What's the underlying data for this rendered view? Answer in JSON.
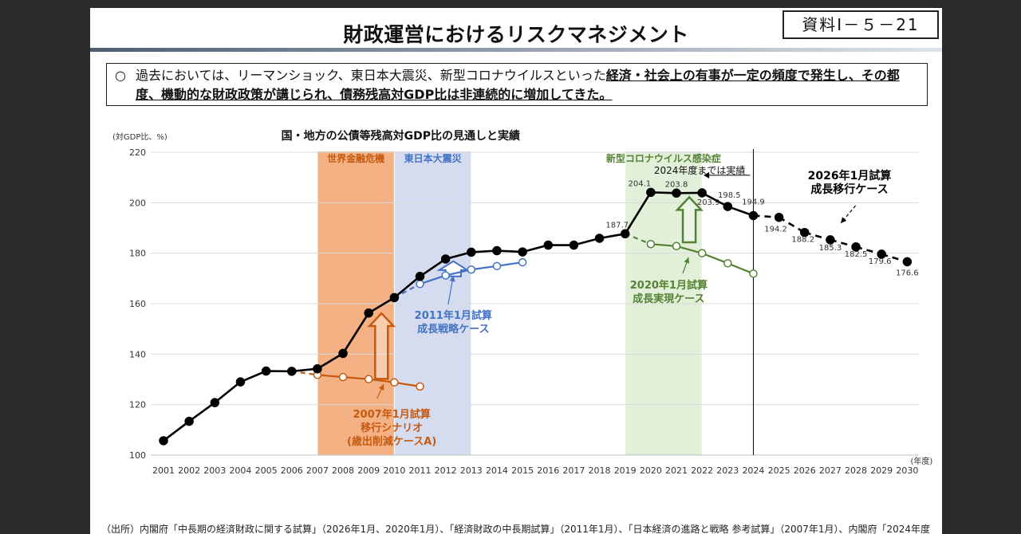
{
  "header": {
    "title": "財政運営におけるリスクマネジメント",
    "doc_number": "資料Ⅰ－５－21"
  },
  "summary": {
    "bullet": "○",
    "text_plain": "過去においては、リーマンショック、東日本大震災、新型コロナウイルスといった",
    "text_bold": "経済・社会上の有事が一定の頻度で発生し、その都度、機動的な財政政策が講じられ、債務残高対GDP比は非連続的に増加してきた。"
  },
  "footer": {
    "source": "（出所）内閣府「中長期の経済財政に関する試算」（2026年1月、2020年1月）、「経済財政の中長期試算」（2011年1月）、「日本経済の進路と戦略 参考試算」（2007年1月）、内閣府「2024年度"
  },
  "colors": {
    "actual": "#000000",
    "case2007": "#c55a11",
    "case2011": "#4472c4",
    "case2020": "#548235",
    "band_crisis": "#f4b183",
    "band_quake": "#d6dcf0",
    "band_covid": "#e2efd9"
  },
  "chart_data": {
    "type": "line",
    "title": "国・地方の公債等残高対GDP比の見通しと実績",
    "ylabel": "(対GDP比、%)",
    "xlabel": "(年度)",
    "ylim": [
      100,
      220
    ],
    "yticks": [
      100,
      120,
      140,
      160,
      180,
      200,
      220
    ],
    "xticks": [
      2001,
      2002,
      2003,
      2004,
      2005,
      2006,
      2007,
      2008,
      2009,
      2010,
      2011,
      2012,
      2013,
      2014,
      2015,
      2016,
      2017,
      2018,
      2019,
      2020,
      2021,
      2022,
      2023,
      2024,
      2025,
      2026,
      2027,
      2028,
      2029,
      2030
    ],
    "grid": true,
    "bands": [
      {
        "label": "世界金融危機",
        "from": 2007,
        "to": 2010,
        "color": "#f4b183",
        "label_color": "#c55a11"
      },
      {
        "label": "東日本大震災",
        "from": 2010,
        "to": 2013,
        "color": "#d6dcf0",
        "label_color": "#4472c4"
      },
      {
        "label": "新型コロナウイルス感染症",
        "from": 2019,
        "to": 2022,
        "color": "#e2efd9",
        "label_color": "#548235"
      }
    ],
    "divider": {
      "x": 2024,
      "label": "2024年度までは実績"
    },
    "series": [
      {
        "name": "",
        "style": "actual",
        "x": [
          2001,
          2002,
          2003,
          2004,
          2005,
          2006,
          2007,
          2008,
          2009,
          2010,
          2011,
          2012,
          2013,
          2014,
          2015,
          2016,
          2017,
          2018,
          2019,
          2020,
          2021,
          2022,
          2023,
          2024
        ],
        "y": [
          105.7,
          113.4,
          120.8,
          129.0,
          133.3,
          133.2,
          134.2,
          140.3,
          156.3,
          162.4,
          170.8,
          177.7,
          180.4,
          181.0,
          180.5,
          183.2,
          183.2,
          185.9,
          187.7,
          204.1,
          203.8,
          203.9,
          198.5,
          194.9
        ]
      },
      {
        "name": "2026年1月試算 成長移行ケース",
        "style": "dashed-black",
        "x": [
          2024,
          2025,
          2026,
          2027,
          2028,
          2029,
          2030
        ],
        "y": [
          194.9,
          194.2,
          188.2,
          185.3,
          182.5,
          179.6,
          176.6
        ]
      },
      {
        "name": "2007年1月試算 移行シナリオ (歳出削減ケースA)",
        "style": "orange",
        "x": [
          2006,
          2007,
          2008,
          2009,
          2010,
          2011
        ],
        "y": [
          133.2,
          131.8,
          130.9,
          130.1,
          128.8,
          127.2
        ]
      },
      {
        "name": "2011年1月試算 成長戦略ケース",
        "style": "blue",
        "x": [
          2010,
          2011,
          2012,
          2013,
          2014,
          2015
        ],
        "y": [
          162.4,
          167.8,
          171.2,
          173.5,
          174.9,
          176.4
        ]
      },
      {
        "name": "2020年1月試算 成長実現ケース",
        "style": "green",
        "x": [
          2019,
          2020,
          2021,
          2022,
          2023,
          2024
        ],
        "y": [
          187.7,
          183.6,
          182.8,
          180.0,
          176.0,
          171.9
        ]
      }
    ],
    "data_labels": [
      {
        "x": 2019,
        "y": 187.7,
        "text": "187.7"
      },
      {
        "x": 2020,
        "y": 204.1,
        "text": "204.1"
      },
      {
        "x": 2021,
        "y": 203.8,
        "text": "203.8"
      },
      {
        "x": 2022,
        "y": 203.9,
        "text": "203.9"
      },
      {
        "x": 2023,
        "y": 198.5,
        "text": "198.5"
      },
      {
        "x": 2024,
        "y": 194.9,
        "text": "194.9"
      },
      {
        "x": 2025,
        "y": 194.2,
        "text": "194.2"
      },
      {
        "x": 2026,
        "y": 188.2,
        "text": "188.2"
      },
      {
        "x": 2027,
        "y": 185.3,
        "text": "185.3"
      },
      {
        "x": 2028,
        "y": 182.5,
        "text": "182.5"
      },
      {
        "x": 2029,
        "y": 179.6,
        "text": "179.6"
      },
      {
        "x": 2030,
        "y": 176.6,
        "text": "176.6"
      }
    ],
    "annotations": [
      {
        "id": "case2026",
        "lines": [
          "2026年1月試算",
          "成長移行ケース"
        ],
        "color": "#000000"
      },
      {
        "id": "case2020",
        "lines": [
          "2020年1月試算",
          "成長実現ケース"
        ],
        "color": "#548235"
      },
      {
        "id": "case2011",
        "lines": [
          "2011年1月試算",
          "成長戦略ケース"
        ],
        "color": "#4472c4"
      },
      {
        "id": "case2007",
        "lines": [
          "2007年1月試算",
          "移行シナリオ",
          "(歳出削減ケースA)"
        ],
        "color": "#c55a11"
      }
    ]
  }
}
